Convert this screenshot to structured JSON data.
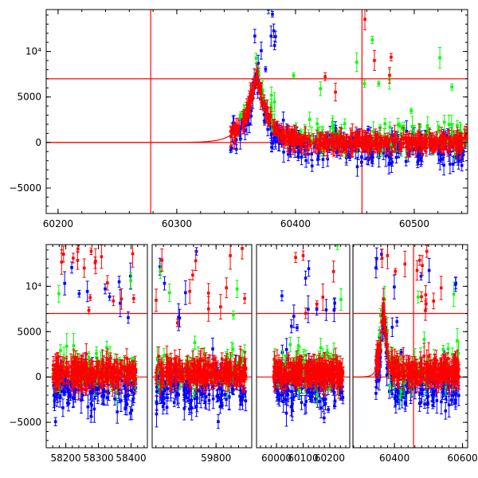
{
  "chart_data": [
    {
      "type": "scatter",
      "xlim": [
        60190,
        60545
      ],
      "ylim": [
        -7800,
        14600
      ],
      "x_ticks": [
        60200,
        60300,
        60400,
        60500
      ],
      "y_ticks": [
        -5000,
        0,
        5000,
        10000
      ],
      "y_tick_labels": [
        "−5000",
        "0",
        "5000",
        "10⁴"
      ],
      "xlabel": "",
      "ylabel": "",
      "grid": false,
      "legend": "none",
      "reference_lines": {
        "horizontal": [
          0,
          7000
        ],
        "vertical": [
          60278,
          60456
        ],
        "color": "#ff0000"
      },
      "model_curve": {
        "color": "#ff0000",
        "peak_x": 60367,
        "peak_y": 7800,
        "rise_e_fold_days": 9.5,
        "decay_e_fold_days": 10,
        "x_range": [
          60190,
          60545
        ]
      },
      "series": [
        {
          "color": "#0000ff",
          "clusters": [
            {
              "x": [
                60345,
                60545
              ],
              "y_center": -600,
              "y_spread": 1700,
              "n": 300,
              "follow_model": true
            },
            {
              "x": [
                60365,
                60385
              ],
              "y_center": 11000,
              "y_spread": 3500,
              "n": 10
            }
          ]
        },
        {
          "color": "#00ff00",
          "clusters": [
            {
              "x": [
                60345,
                60545
              ],
              "y_center": 600,
              "y_spread": 1800,
              "n": 120,
              "follow_model": true
            },
            {
              "x": [
                60380,
                60540
              ],
              "y_center": 8000,
              "y_spread": 5000,
              "n": 10
            }
          ]
        },
        {
          "color": "#ff0000",
          "clusters": [
            {
              "x": [
                60345,
                60545
              ],
              "y_center": 0,
              "y_spread": 800,
              "n": 450,
              "follow_model": true
            },
            {
              "x": [
                60390,
                60500
              ],
              "y_center": 9000,
              "y_spread": 4000,
              "n": 6
            }
          ]
        }
      ]
    },
    {
      "type": "scatter",
      "axis_breaks": true,
      "ylim": [
        -7800,
        14600
      ],
      "y_ticks": [
        -5000,
        0,
        5000,
        10000
      ],
      "y_tick_labels": [
        "−5000",
        "0",
        "5000",
        "10⁴"
      ],
      "xlabel": "",
      "ylabel": "",
      "grid": false,
      "legend": "none",
      "reference_lines": {
        "horizontal": [
          0,
          7000
        ],
        "vertical": [
          60278,
          60456
        ],
        "color": "#ff0000"
      },
      "segments": [
        {
          "xlim": [
            58140,
            58450
          ],
          "x_ticks": [
            58200,
            58300,
            58400
          ],
          "data_x": [
            58160,
            58415
          ]
        },
        {
          "xlim": [
            59630,
            59895
          ],
          "x_ticks": [
            59800
          ],
          "data_x": [
            59640,
            59880
          ]
        },
        {
          "xlim": [
            59925,
            60275
          ],
          "x_ticks": [
            60000,
            60100,
            60200
          ],
          "data_x": [
            59990,
            60250
          ]
        },
        {
          "xlim": [
            60278,
            60615
          ],
          "x_ticks": [
            60400,
            60600
          ],
          "data_x": [
            60345,
            60590
          ]
        }
      ],
      "model_curve": {
        "color": "#ff0000",
        "peak_x": 60367,
        "peak_y": 7800,
        "rise_e_fold_days": 9.5,
        "decay_e_fold_days": 10
      },
      "series": [
        {
          "color": "#0000ff",
          "y_center": -1100,
          "y_spread": 2300,
          "n_per_segment": 160
        },
        {
          "color": "#00ff00",
          "y_center": 1100,
          "y_spread": 2500,
          "n_per_segment": 60
        },
        {
          "color": "#ff0000",
          "y_center": 500,
          "y_spread": 1200,
          "n_per_segment": 260
        }
      ]
    }
  ]
}
